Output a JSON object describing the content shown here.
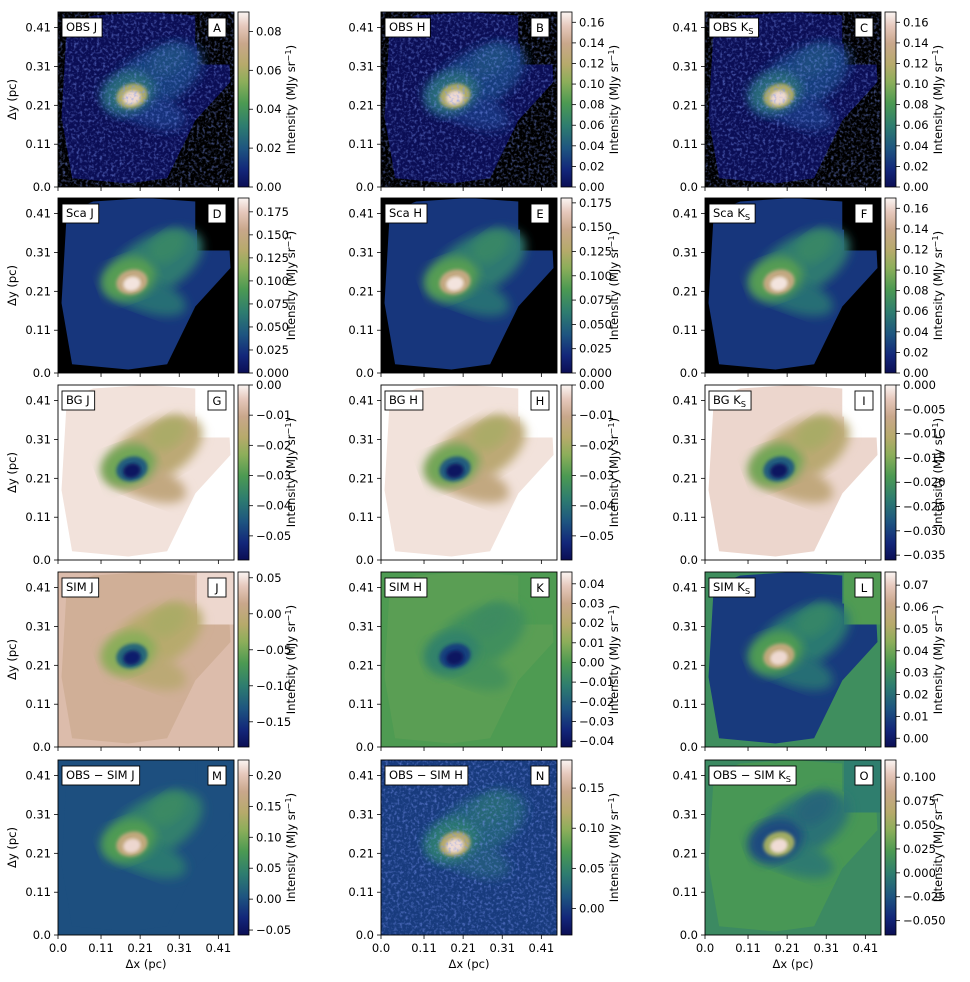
{
  "figure": {
    "y_axis_label": "Δy (pc)",
    "x_axis_label": "Δx (pc)",
    "colorbar_label": "Intensity (MJy sr",
    "colorbar_label_exp": "−1",
    "colorbar_label_end": ")"
  },
  "colormap": {
    "name": "gist_earth",
    "stops": [
      [
        0.0,
        "#0b0e55"
      ],
      [
        0.1,
        "#13277a"
      ],
      [
        0.22,
        "#1e5580"
      ],
      [
        0.35,
        "#2e7d6f"
      ],
      [
        0.48,
        "#4c9a52"
      ],
      [
        0.6,
        "#8cae5a"
      ],
      [
        0.7,
        "#b6aa6b"
      ],
      [
        0.82,
        "#c9a78b"
      ],
      [
        0.92,
        "#e6c8bc"
      ],
      [
        1.0,
        "#fbf5f3"
      ]
    ]
  },
  "chart_data": [
    {
      "type": "heatmap",
      "panel": "A",
      "title": "OBS J",
      "band": "J",
      "row": "OBS",
      "xlim": [
        0,
        0.45
      ],
      "ylim": [
        0,
        0.45
      ],
      "xticks": [
        "0.0",
        "0.11",
        "0.21",
        "0.31",
        "0.41"
      ],
      "yticks": [
        "0.0",
        "0.11",
        "0.21",
        "0.31",
        "0.41"
      ],
      "colorbar_range": [
        0,
        0.09
      ],
      "colorbar_ticks": [
        "0.00",
        "0.02",
        "0.04",
        "0.06",
        "0.08"
      ]
    },
    {
      "type": "heatmap",
      "panel": "B",
      "title": "OBS H",
      "band": "H",
      "row": "OBS",
      "xlim": [
        0,
        0.45
      ],
      "ylim": [
        0,
        0.45
      ],
      "xticks": [
        "0.0",
        "0.11",
        "0.21",
        "0.31",
        "0.41"
      ],
      "yticks": [
        "0.0",
        "0.11",
        "0.21",
        "0.31",
        "0.41"
      ],
      "colorbar_range": [
        0,
        0.17
      ],
      "colorbar_ticks": [
        "0.00",
        "0.02",
        "0.04",
        "0.06",
        "0.08",
        "0.10",
        "0.12",
        "0.14",
        "0.16"
      ]
    },
    {
      "type": "heatmap",
      "panel": "C",
      "title": "OBS K",
      "title_sub": "S",
      "band": "Ks",
      "row": "OBS",
      "xlim": [
        0,
        0.45
      ],
      "ylim": [
        0,
        0.45
      ],
      "xticks": [
        "0.0",
        "0.11",
        "0.21",
        "0.31",
        "0.41"
      ],
      "yticks": [
        "0.0",
        "0.11",
        "0.21",
        "0.31",
        "0.41"
      ],
      "colorbar_range": [
        0,
        0.17
      ],
      "colorbar_ticks": [
        "0.00",
        "0.02",
        "0.04",
        "0.06",
        "0.08",
        "0.10",
        "0.12",
        "0.14",
        "0.16"
      ]
    },
    {
      "type": "heatmap",
      "panel": "D",
      "title": "Sca J",
      "band": "J",
      "row": "Sca",
      "xlim": [
        0,
        0.45
      ],
      "ylim": [
        0,
        0.45
      ],
      "xticks": [
        "0.0",
        "0.11",
        "0.21",
        "0.31",
        "0.41"
      ],
      "yticks": [
        "0.0",
        "0.11",
        "0.21",
        "0.31",
        "0.41"
      ],
      "colorbar_range": [
        0,
        0.19
      ],
      "colorbar_ticks": [
        "0.000",
        "0.025",
        "0.050",
        "0.075",
        "0.100",
        "0.125",
        "0.150",
        "0.175"
      ]
    },
    {
      "type": "heatmap",
      "panel": "E",
      "title": "Sca H",
      "band": "H",
      "row": "Sca",
      "xlim": [
        0,
        0.45
      ],
      "ylim": [
        0,
        0.45
      ],
      "xticks": [
        "0.0",
        "0.11",
        "0.21",
        "0.31",
        "0.41"
      ],
      "yticks": [
        "0.0",
        "0.11",
        "0.21",
        "0.31",
        "0.41"
      ],
      "colorbar_range": [
        0,
        0.18
      ],
      "colorbar_ticks": [
        "0.000",
        "0.025",
        "0.050",
        "0.075",
        "0.100",
        "0.125",
        "0.150",
        "0.175"
      ]
    },
    {
      "type": "heatmap",
      "panel": "F",
      "title": "Sca K",
      "title_sub": "S",
      "band": "Ks",
      "row": "Sca",
      "xlim": [
        0,
        0.45
      ],
      "ylim": [
        0,
        0.45
      ],
      "xticks": [
        "0.0",
        "0.11",
        "0.21",
        "0.31",
        "0.41"
      ],
      "yticks": [
        "0.0",
        "0.11",
        "0.21",
        "0.31",
        "0.41"
      ],
      "colorbar_range": [
        0,
        0.17
      ],
      "colorbar_ticks": [
        "0.00",
        "0.02",
        "0.04",
        "0.06",
        "0.08",
        "0.10",
        "0.12",
        "0.14",
        "0.16"
      ]
    },
    {
      "type": "heatmap",
      "panel": "G",
      "title": "BG J",
      "band": "J",
      "row": "BG",
      "xlim": [
        0,
        0.45
      ],
      "ylim": [
        0,
        0.45
      ],
      "xticks": [
        "0.0",
        "0.11",
        "0.21",
        "0.31",
        "0.41"
      ],
      "yticks": [
        "0.0",
        "0.11",
        "0.21",
        "0.31",
        "0.41"
      ],
      "colorbar_range": [
        -0.058,
        0
      ],
      "colorbar_ticks": [
        "0.00",
        "−0.01",
        "−0.02",
        "−0.03",
        "−0.04",
        "−0.05"
      ]
    },
    {
      "type": "heatmap",
      "panel": "H",
      "title": "BG H",
      "band": "H",
      "row": "BG",
      "xlim": [
        0,
        0.45
      ],
      "ylim": [
        0,
        0.45
      ],
      "xticks": [
        "0.0",
        "0.11",
        "0.21",
        "0.31",
        "0.41"
      ],
      "yticks": [
        "0.0",
        "0.11",
        "0.21",
        "0.31",
        "0.41"
      ],
      "colorbar_range": [
        -0.058,
        0
      ],
      "colorbar_ticks": [
        "0.00",
        "−0.01",
        "−0.02",
        "−0.03",
        "−0.04",
        "−0.05"
      ]
    },
    {
      "type": "heatmap",
      "panel": "I",
      "title": "BG K",
      "title_sub": "S",
      "band": "Ks",
      "row": "BG",
      "xlim": [
        0,
        0.45
      ],
      "ylim": [
        0,
        0.45
      ],
      "xticks": [
        "0.0",
        "0.11",
        "0.21",
        "0.31",
        "0.41"
      ],
      "yticks": [
        "0.0",
        "0.11",
        "0.21",
        "0.31",
        "0.41"
      ],
      "colorbar_range": [
        -0.036,
        0
      ],
      "colorbar_ticks": [
        "0.000",
        "−0.005",
        "−0.010",
        "−0.015",
        "−0.020",
        "−0.025",
        "−0.030",
        "−0.035"
      ]
    },
    {
      "type": "heatmap",
      "panel": "J",
      "title": "SIM J",
      "band": "J",
      "row": "SIM",
      "xlim": [
        0,
        0.45
      ],
      "ylim": [
        0,
        0.45
      ],
      "xticks": [
        "0.0",
        "0.11",
        "0.21",
        "0.31",
        "0.41"
      ],
      "yticks": [
        "0.0",
        "0.11",
        "0.21",
        "0.31",
        "0.41"
      ],
      "colorbar_range": [
        -0.185,
        0.058
      ],
      "colorbar_ticks": [
        "0.05",
        "0.00",
        "−0.05",
        "−0.10",
        "−0.15"
      ]
    },
    {
      "type": "heatmap",
      "panel": "K",
      "title": "SIM H",
      "band": "H",
      "row": "SIM",
      "xlim": [
        0,
        0.45
      ],
      "ylim": [
        0,
        0.45
      ],
      "xticks": [
        "0.0",
        "0.11",
        "0.21",
        "0.31",
        "0.41"
      ],
      "yticks": [
        "0.0",
        "0.11",
        "0.21",
        "0.31",
        "0.41"
      ],
      "colorbar_range": [
        -0.043,
        0.046
      ],
      "colorbar_ticks": [
        "0.04",
        "0.03",
        "0.02",
        "0.01",
        "0.00",
        "−0.01",
        "−0.02",
        "−0.03",
        "−0.04"
      ]
    },
    {
      "type": "heatmap",
      "panel": "L",
      "title": "SIM K",
      "title_sub": "S",
      "band": "Ks",
      "row": "SIM",
      "xlim": [
        0,
        0.45
      ],
      "ylim": [
        0,
        0.45
      ],
      "xticks": [
        "0.0",
        "0.11",
        "0.21",
        "0.31",
        "0.41"
      ],
      "yticks": [
        "0.0",
        "0.11",
        "0.21",
        "0.31",
        "0.41"
      ],
      "colorbar_range": [
        -0.004,
        0.076
      ],
      "colorbar_ticks": [
        "0.07",
        "0.06",
        "0.05",
        "0.04",
        "0.03",
        "0.02",
        "0.01",
        "0.00"
      ]
    },
    {
      "type": "heatmap",
      "panel": "M",
      "title": "OBS − SIM J",
      "band": "J",
      "row": "OBS-SIM",
      "xlim": [
        0,
        0.45
      ],
      "ylim": [
        0,
        0.45
      ],
      "xticks": [
        "0.0",
        "0.11",
        "0.21",
        "0.31",
        "0.41"
      ],
      "yticks": [
        "0.0",
        "0.11",
        "0.21",
        "0.31",
        "0.41"
      ],
      "colorbar_range": [
        -0.058,
        0.225
      ],
      "colorbar_ticks": [
        "0.20",
        "0.15",
        "0.10",
        "0.05",
        "0.00",
        "−0.05"
      ]
    },
    {
      "type": "heatmap",
      "panel": "N",
      "title": "OBS − SIM H",
      "band": "H",
      "row": "OBS-SIM",
      "xlim": [
        0,
        0.45
      ],
      "ylim": [
        0,
        0.45
      ],
      "xticks": [
        "0.0",
        "0.11",
        "0.21",
        "0.31",
        "0.41"
      ],
      "yticks": [
        "0.0",
        "0.11",
        "0.21",
        "0.31",
        "0.41"
      ],
      "colorbar_range": [
        -0.033,
        0.185
      ],
      "colorbar_ticks": [
        "0.15",
        "0.10",
        "0.05",
        "0.00"
      ]
    },
    {
      "type": "heatmap",
      "panel": "O",
      "title": "OBS − SIM K",
      "title_sub": "S",
      "band": "Ks",
      "row": "OBS-SIM",
      "xlim": [
        0,
        0.45
      ],
      "ylim": [
        0,
        0.45
      ],
      "xticks": [
        "0.0",
        "0.11",
        "0.21",
        "0.31",
        "0.41"
      ],
      "yticks": [
        "0.0",
        "0.11",
        "0.21",
        "0.31",
        "0.41"
      ],
      "colorbar_range": [
        -0.065,
        0.118
      ],
      "colorbar_ticks": [
        "0.100",
        "0.075",
        "0.050",
        "0.025",
        "0.000",
        "−0.025",
        "−0.050"
      ]
    }
  ]
}
